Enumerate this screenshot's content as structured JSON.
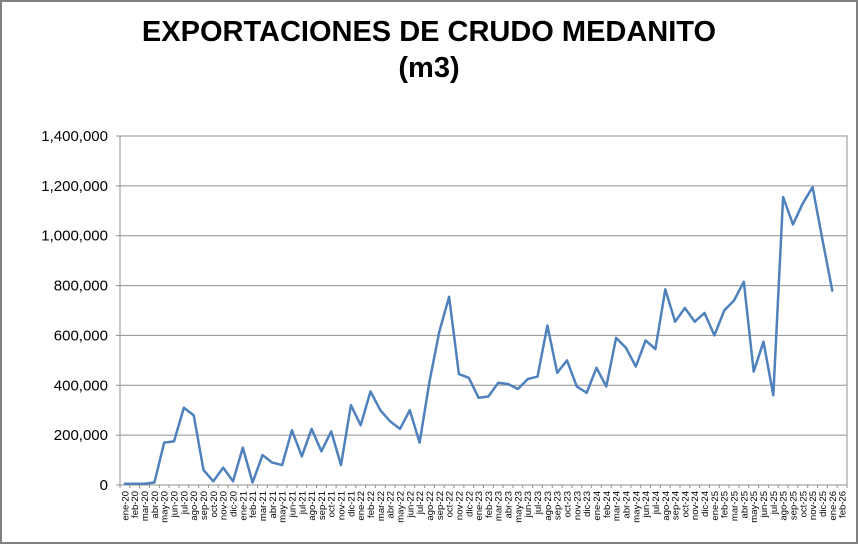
{
  "chart_data": {
    "type": "line",
    "title": "EXPORTACIONES DE CRUDO MEDANITO (m3)",
    "xlabel": "",
    "ylabel": "",
    "ylim": [
      0,
      1400000
    ],
    "ytick_interval": 200000,
    "ytick_labels": [
      "0",
      "200,000",
      "400,000",
      "600,000",
      "800,000",
      "1,000,000",
      "1,200,000",
      "1,400,000"
    ],
    "grid": true,
    "legend": "none",
    "line_color": "#4F81BD",
    "gridline_color": "#909090",
    "axis_text_color": "#000000",
    "categories": [
      "ene-20",
      "feb-20",
      "mar-20",
      "abr-20",
      "may-20",
      "jun-20",
      "jul-20",
      "ago-20",
      "sep-20",
      "oct-20",
      "nov-20",
      "dic-20",
      "ene-21",
      "feb-21",
      "mar-21",
      "abr-21",
      "may-21",
      "jun-21",
      "jul-21",
      "ago-21",
      "sep-21",
      "oct-21",
      "nov-21",
      "dic-21",
      "ene-22",
      "feb-22",
      "mar-22",
      "abr-22",
      "may-22",
      "jun-22",
      "jul-22",
      "ago-22",
      "sep-22",
      "oct-22",
      "nov-22",
      "dic-22",
      "ene-23",
      "feb-23",
      "mar-23",
      "abr-23",
      "may-23",
      "jun-23",
      "jul-23",
      "ago-23",
      "sep-23",
      "oct-23",
      "nov-23",
      "dic-23",
      "ene-24",
      "feb-24",
      "mar-24",
      "abr-24",
      "may-24",
      "jun-24",
      "jul-24",
      "ago-24",
      "sep-24",
      "oct-24",
      "nov-24",
      "dic-24",
      "ene-25",
      "feb-25",
      "mar-25",
      "abr-25",
      "may-25",
      "jun-25",
      "jul-25",
      "ago-25",
      "sep-25",
      "oct-25",
      "nov-25",
      "dic-25",
      "ene-26",
      "feb-26"
    ],
    "series": [
      {
        "name": "Exportaciones de crudo Medanito (m3)",
        "values": [
          5000,
          5000,
          5000,
          10000,
          170000,
          175000,
          310000,
          280000,
          60000,
          15000,
          70000,
          15000,
          150000,
          10000,
          120000,
          90000,
          80000,
          220000,
          115000,
          225000,
          135000,
          215000,
          80000,
          320000,
          240000,
          375000,
          300000,
          255000,
          225000,
          300000,
          170000,
          415000,
          615000,
          755000,
          445000,
          430000,
          350000,
          355000,
          410000,
          405000,
          385000,
          425000,
          435000,
          640000,
          450000,
          500000,
          395000,
          370000,
          470000,
          395000,
          590000,
          550000,
          475000,
          580000,
          545000,
          785000,
          655000,
          710000,
          655000,
          690000,
          600000,
          700000,
          740000,
          815000,
          455000,
          575000,
          360000,
          1155000,
          1045000,
          1130000,
          1195000,
          985000,
          780000,
          null
        ]
      }
    ]
  }
}
